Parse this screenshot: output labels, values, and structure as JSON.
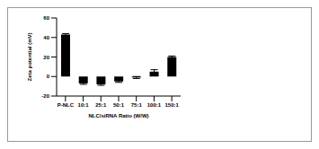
{
  "chart_data": {
    "type": "bar",
    "categories": [
      "P-NLC",
      "10:1",
      "25:1",
      "50:1",
      "75:1",
      "100:1",
      "150:1"
    ],
    "values": [
      43,
      -7,
      -8,
      -5,
      -1,
      5,
      20
    ],
    "errors": [
      1,
      1,
      1,
      1,
      1,
      2,
      1
    ],
    "color": "#000000",
    "ylim": [
      -20,
      60
    ],
    "yticks": [
      -20,
      0,
      20,
      40,
      60
    ],
    "xlabel": "NLC/siRNA Ratio (W/W)",
    "ylabel": "Zeta potential (mV)",
    "grid": false
  }
}
